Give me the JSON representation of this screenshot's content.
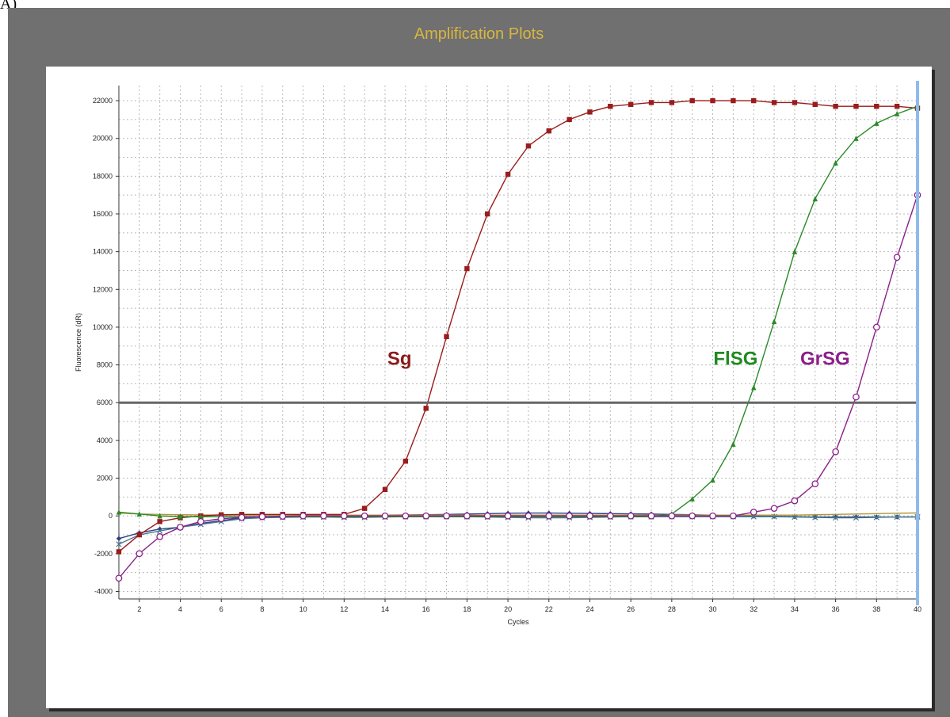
{
  "figure_label": "A)",
  "chart_data": {
    "type": "line",
    "title": "Amplification Plots",
    "xlabel": "Cycles",
    "ylabel": "Fluorescence (dR)",
    "xlim": [
      1,
      40
    ],
    "ylim": [
      -4400,
      22800
    ],
    "xticks": [
      2,
      4,
      6,
      8,
      10,
      12,
      14,
      16,
      18,
      20,
      22,
      24,
      26,
      28,
      30,
      32,
      34,
      36,
      38,
      40
    ],
    "yticks": [
      -4000,
      -2000,
      0,
      2000,
      4000,
      6000,
      8000,
      10000,
      12000,
      14000,
      16000,
      18000,
      20000,
      22000
    ],
    "grid": true,
    "threshold": 6000,
    "cursor_x": 40,
    "colors": {
      "threshold": "#666666",
      "cursor": "#8fbbea"
    },
    "series": [
      {
        "name": "Sg",
        "color": "#9a1c1c",
        "label_color": "#8b1a1a",
        "marker": "square-filled",
        "label_at": [
          15.3,
          8000
        ],
        "values": [
          -1900,
          -1000,
          -300,
          -100,
          0,
          60,
          80,
          80,
          80,
          80,
          80,
          80,
          400,
          1400,
          2900,
          5700,
          9500,
          13100,
          16000,
          18100,
          19600,
          20400,
          21000,
          21400,
          21700,
          21800,
          21900,
          21900,
          22000,
          22000,
          22000,
          22000,
          21900,
          21900,
          21800,
          21700,
          21700,
          21700,
          21700,
          21600
        ]
      },
      {
        "name": "FlSG",
        "color": "#2a8a2a",
        "label_color": "#1f8a1f",
        "marker": "triangle-filled",
        "label_at": [
          32.2,
          8000
        ],
        "values": [
          200,
          100,
          0,
          -40,
          -40,
          -40,
          -40,
          -40,
          -40,
          -40,
          -40,
          -40,
          -40,
          -40,
          -40,
          -40,
          -40,
          -40,
          -40,
          -40,
          -40,
          -40,
          -40,
          -40,
          -40,
          -40,
          -40,
          100,
          900,
          1900,
          3800,
          6800,
          10300,
          14000,
          16800,
          18700,
          20000,
          20800,
          21300,
          21700
        ]
      },
      {
        "name": "GrSG",
        "color": "#8a208a",
        "label_color": "#8a1f8a",
        "marker": "circle-open",
        "label_at": [
          36.7,
          8000
        ],
        "values": [
          -3300,
          -2000,
          -1100,
          -600,
          -300,
          -150,
          -80,
          -40,
          -20,
          0,
          0,
          0,
          0,
          0,
          0,
          0,
          0,
          0,
          0,
          0,
          0,
          0,
          0,
          0,
          0,
          0,
          0,
          0,
          0,
          0,
          0,
          200,
          400,
          800,
          1700,
          3400,
          6300,
          10000,
          13700,
          17000
        ]
      },
      {
        "name": "",
        "color": "#2c3e88",
        "label_color": "#2c3e88",
        "marker": "diamond-filled",
        "values": [
          -1200,
          -900,
          -700,
          -600,
          -400,
          -250,
          -100,
          -50,
          -20,
          0,
          20,
          20,
          30,
          40,
          50,
          60,
          80,
          100,
          120,
          140,
          150,
          150,
          140,
          130,
          120,
          110,
          100,
          80,
          60,
          40,
          20,
          0,
          -20,
          -40,
          -60,
          -60,
          -60,
          -60,
          -60,
          -60
        ]
      },
      {
        "name": "",
        "color": "#4a7a8c",
        "label_color": "#4a7a8c",
        "marker": "cross",
        "values": [
          -1500,
          -1000,
          -800,
          -600,
          -450,
          -300,
          -150,
          -100,
          -80,
          -60,
          -60,
          -80,
          -80,
          -60,
          -40,
          -30,
          -30,
          -40,
          -60,
          -80,
          -100,
          -100,
          -100,
          -80,
          -60,
          -40,
          -40,
          -40,
          -40,
          -40,
          -40,
          -40,
          -40,
          -60,
          -80,
          -100,
          -100,
          -80,
          -60,
          -50
        ]
      },
      {
        "name": "",
        "color": "#b0963a",
        "label_color": "#b0963a",
        "marker": "none",
        "values": [
          150,
          100,
          80,
          60,
          50,
          40,
          40,
          40,
          40,
          40,
          40,
          40,
          40,
          40,
          40,
          40,
          40,
          40,
          40,
          40,
          40,
          40,
          40,
          40,
          40,
          40,
          40,
          40,
          40,
          40,
          40,
          40,
          40,
          40,
          60,
          80,
          100,
          120,
          140,
          160
        ]
      }
    ]
  }
}
